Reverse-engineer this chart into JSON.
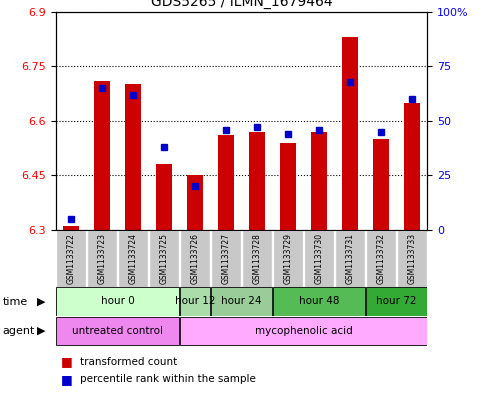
{
  "title": "GDS5265 / ILMN_1679464",
  "samples": [
    "GSM1133722",
    "GSM1133723",
    "GSM1133724",
    "GSM1133725",
    "GSM1133726",
    "GSM1133727",
    "GSM1133728",
    "GSM1133729",
    "GSM1133730",
    "GSM1133731",
    "GSM1133732",
    "GSM1133733"
  ],
  "transformed_count": [
    6.31,
    6.71,
    6.7,
    6.48,
    6.45,
    6.56,
    6.57,
    6.54,
    6.57,
    6.83,
    6.55,
    6.65
  ],
  "percentile_rank": [
    5,
    65,
    62,
    38,
    20,
    46,
    47,
    44,
    46,
    68,
    45,
    60
  ],
  "ylim_left": [
    6.3,
    6.9
  ],
  "ylim_right": [
    0,
    100
  ],
  "yticks_left": [
    6.3,
    6.45,
    6.6,
    6.75,
    6.9
  ],
  "yticks_right": [
    0,
    25,
    50,
    75,
    100
  ],
  "ytick_labels_right": [
    "0",
    "25",
    "50",
    "75",
    "100%"
  ],
  "bar_color_red": "#cc0000",
  "bar_color_blue": "#0000cc",
  "bar_width": 0.5,
  "time_groups": [
    {
      "label": "hour 0",
      "samples": [
        0,
        1,
        2,
        3
      ],
      "color": "#ccffcc"
    },
    {
      "label": "hour 12",
      "samples": [
        4
      ],
      "color": "#aaddaa"
    },
    {
      "label": "hour 24",
      "samples": [
        5,
        6
      ],
      "color": "#99cc99"
    },
    {
      "label": "hour 48",
      "samples": [
        7,
        8,
        9
      ],
      "color": "#55bb55"
    },
    {
      "label": "hour 72",
      "samples": [
        10,
        11
      ],
      "color": "#33aa33"
    }
  ],
  "agent_groups": [
    {
      "label": "untreated control",
      "samples": [
        0,
        1,
        2,
        3
      ],
      "color": "#ee88ee"
    },
    {
      "label": "mycophenolic acid",
      "samples": [
        4,
        5,
        6,
        7,
        8,
        9,
        10,
        11
      ],
      "color": "#ffaaff"
    }
  ],
  "legend_red_label": "transformed count",
  "legend_blue_label": "percentile rank within the sample",
  "background_sample_row": "#c8c8c8"
}
